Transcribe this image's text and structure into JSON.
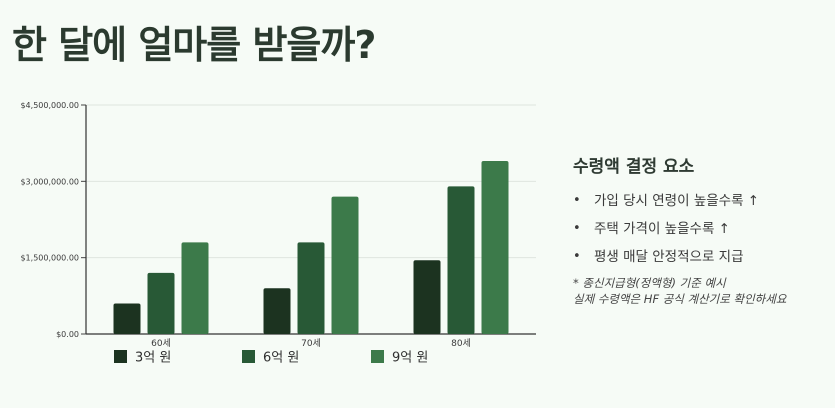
{
  "title": "한 달에 얼마를 받을까?",
  "chart_data": {
    "type": "bar",
    "categories": [
      "60세",
      "70세",
      "80세"
    ],
    "series": [
      {
        "name": "3억 원",
        "color": "#1c3320",
        "values": [
          600000,
          900000,
          1450000
        ]
      },
      {
        "name": "6억 원",
        "color": "#285936",
        "values": [
          1200000,
          1800000,
          2900000
        ]
      },
      {
        "name": "9억 원",
        "color": "#3c7a4a",
        "values": [
          1800000,
          2700000,
          3400000
        ]
      }
    ],
    "ylim": [
      0,
      4500000
    ],
    "yticks": [
      0,
      1500000,
      3000000,
      4500000
    ],
    "ytick_labels": [
      "$0.00",
      "$1,500,000.00",
      "$3,000,000.00",
      "$4,500,000.00"
    ],
    "grid": true,
    "legend_position": "bottom-left",
    "xlabel": "",
    "ylabel": ""
  },
  "panel": {
    "heading": "수령액 결정 요소",
    "items": [
      "가입 당시 연령이 높을수록 ↑",
      "주택 가격이 높을수록 ↑",
      "평생 매달 안정적으로 지급"
    ],
    "bullet": "•",
    "note1": "* 종신지급형(정액형) 기준 예시",
    "note2": "실제 수령액은 HF 공식 계산기로 확인하세요"
  }
}
